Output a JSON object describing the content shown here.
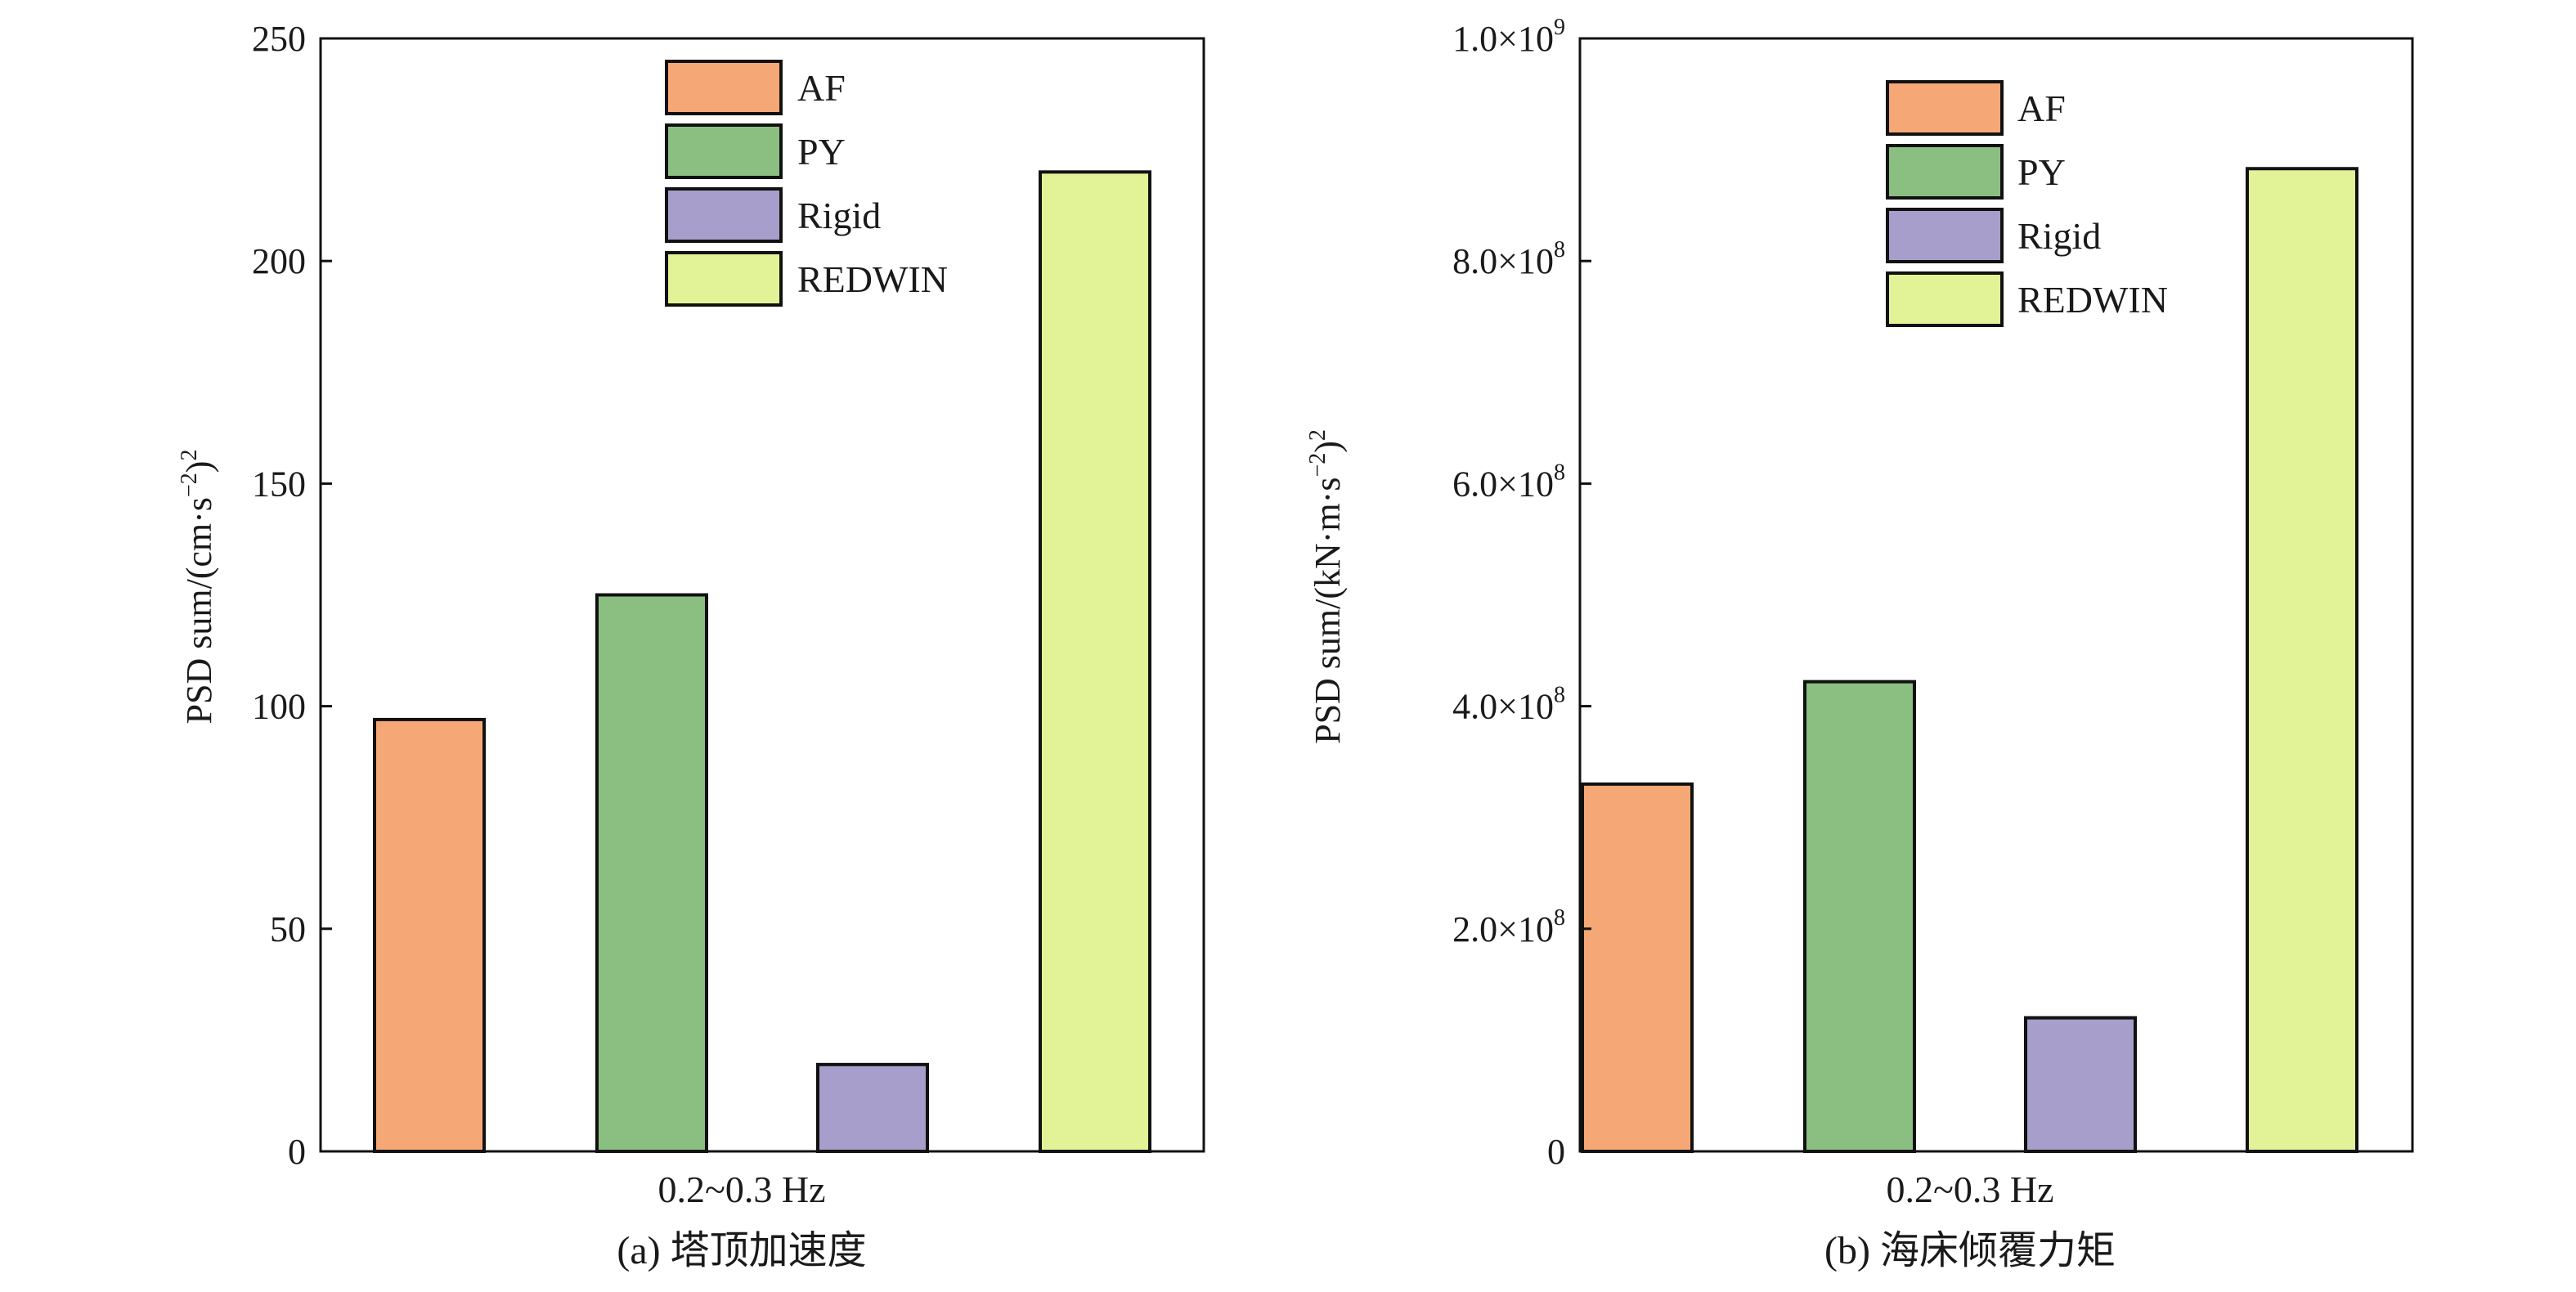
{
  "chart_data": [
    {
      "type": "bar",
      "title": "",
      "caption": "(a) 塔顶加速度",
      "xlabel": "0.2~0.3 Hz",
      "ylabel_main": "PSD sum/(cm·s",
      "ylabel_exp_inner": "−2",
      "ylabel_close": ")",
      "ylabel_exp_outer": "2",
      "ylim": [
        0,
        250
      ],
      "yticks": [
        {
          "value": 0,
          "label": "0"
        },
        {
          "value": 50,
          "label": "50"
        },
        {
          "value": 100,
          "label": "100"
        },
        {
          "value": 150,
          "label": "150"
        },
        {
          "value": 200,
          "label": "200"
        },
        {
          "value": 250,
          "label": "250"
        }
      ],
      "grid": false,
      "legend_position": "top",
      "series": [
        {
          "name": "AF",
          "value": 97,
          "color": "#f5a875"
        },
        {
          "name": "PY",
          "value": 125,
          "color": "#8bbf82"
        },
        {
          "name": "Rigid",
          "value": 19.5,
          "color": "#a79ecb"
        },
        {
          "name": "REDWIN",
          "value": 220,
          "color": "#e2f296"
        }
      ]
    },
    {
      "type": "bar",
      "title": "",
      "caption": "(b) 海床倾覆力矩",
      "xlabel": "0.2~0.3 Hz",
      "ylabel_main": "PSD sum/(kN·m·s",
      "ylabel_exp_inner": "−2",
      "ylabel_close": ")",
      "ylabel_exp_outer": "2",
      "ylim": [
        0,
        1000000000
      ],
      "yticks": [
        {
          "value": 0,
          "label": "0",
          "sup": ""
        },
        {
          "value": 200000000,
          "label": "2.0×10",
          "sup": "8"
        },
        {
          "value": 400000000,
          "label": "4.0×10",
          "sup": "8"
        },
        {
          "value": 600000000,
          "label": "6.0×10",
          "sup": "8"
        },
        {
          "value": 800000000,
          "label": "8.0×10",
          "sup": "8"
        },
        {
          "value": 1000000000,
          "label": "1.0×10",
          "sup": "9"
        }
      ],
      "grid": false,
      "legend_position": "top",
      "series": [
        {
          "name": "AF",
          "value": 330000000,
          "color": "#f5a875"
        },
        {
          "name": "PY",
          "value": 422000000,
          "color": "#8bbf82"
        },
        {
          "name": "Rigid",
          "value": 120000000,
          "color": "#a79ecb"
        },
        {
          "name": "REDWIN",
          "value": 883000000,
          "color": "#e2f296"
        }
      ]
    }
  ]
}
